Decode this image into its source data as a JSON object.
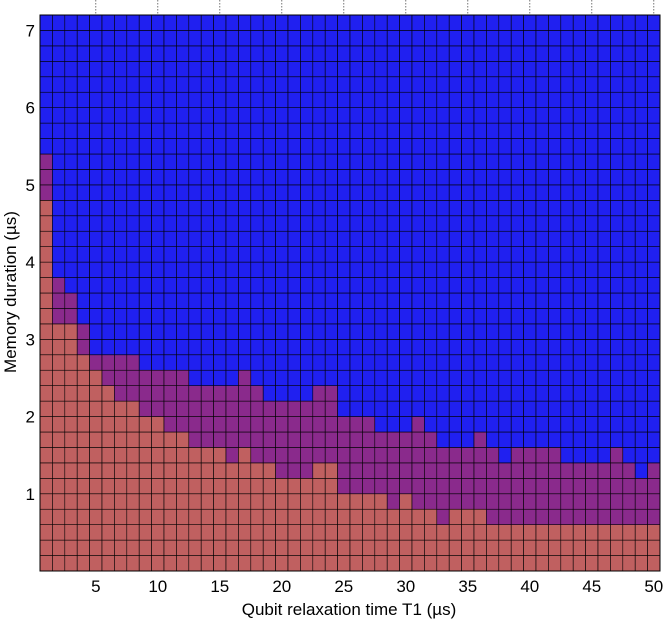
{
  "chart_data": {
    "type": "heatmap",
    "title": "",
    "xlabel": "Qubit relaxation time T1 (µs)",
    "ylabel": "Memory duration (µs)",
    "xlim": [
      1,
      50
    ],
    "ylim": [
      0,
      7.2
    ],
    "x_step": 1,
    "y_step": 0.2,
    "xticks": [
      5,
      10,
      15,
      20,
      25,
      30,
      35,
      40,
      45,
      50
    ],
    "yticks": [
      1,
      2,
      3,
      4,
      5,
      6,
      7
    ],
    "grid": true,
    "legend": "none",
    "colors": {
      "low_region": "#c06060",
      "mid_region": "#8a2a8c",
      "high_region": "#2020f0",
      "cell_border": "#000000"
    },
    "x": [
      1,
      2,
      3,
      4,
      5,
      6,
      7,
      8,
      9,
      10,
      11,
      12,
      13,
      14,
      15,
      16,
      17,
      18,
      19,
      20,
      21,
      22,
      23,
      24,
      25,
      26,
      27,
      28,
      29,
      30,
      31,
      32,
      33,
      34,
      35,
      36,
      37,
      38,
      39,
      40,
      41,
      42,
      43,
      44,
      45,
      46,
      47,
      48,
      49,
      50
    ],
    "boundary_low": [
      4.8,
      3.2,
      3.2,
      2.8,
      2.6,
      2.4,
      2.2,
      2.2,
      2.0,
      2.0,
      1.8,
      1.8,
      1.6,
      1.6,
      1.6,
      1.4,
      1.6,
      1.4,
      1.4,
      1.2,
      1.2,
      1.2,
      1.4,
      1.4,
      1.0,
      1.0,
      1.0,
      1.0,
      0.8,
      1.0,
      0.8,
      0.8,
      0.6,
      0.8,
      0.8,
      0.8,
      0.6,
      0.6,
      0.6,
      0.6,
      0.6,
      0.6,
      0.6,
      0.6,
      0.6,
      0.6,
      0.6,
      0.6,
      0.6,
      0.6
    ],
    "boundary_high": [
      5.4,
      3.8,
      3.6,
      3.2,
      2.8,
      2.8,
      2.8,
      2.8,
      2.6,
      2.6,
      2.6,
      2.6,
      2.4,
      2.4,
      2.4,
      2.4,
      2.6,
      2.4,
      2.2,
      2.2,
      2.2,
      2.2,
      2.4,
      2.4,
      2.0,
      2.0,
      2.0,
      1.8,
      1.8,
      1.8,
      2.0,
      1.8,
      1.6,
      1.6,
      1.6,
      1.8,
      1.6,
      1.4,
      1.6,
      1.6,
      1.6,
      1.6,
      1.4,
      1.4,
      1.4,
      1.4,
      1.6,
      1.4,
      1.2,
      1.4
    ]
  }
}
